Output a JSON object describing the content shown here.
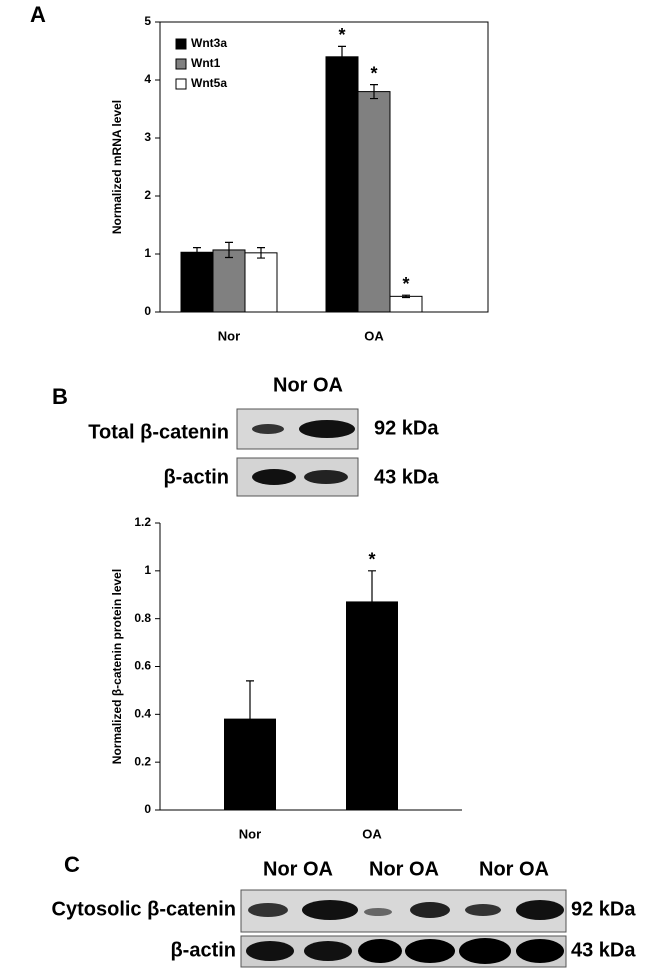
{
  "chart_data": [
    {
      "type": "bar",
      "panel_label": "A",
      "ylabel": "Normalized mRNA level",
      "categories": [
        "Nor",
        "OA"
      ],
      "series": [
        {
          "name": "Wnt3a",
          "color": "#000000",
          "values": [
            1.03,
            4.4
          ],
          "errors": [
            0.08,
            0.18
          ],
          "labels": [
            null,
            "*"
          ]
        },
        {
          "name": "Wnt1",
          "color": "#808080",
          "values": [
            1.07,
            3.8
          ],
          "errors": [
            0.13,
            0.12
          ],
          "labels": [
            null,
            "*"
          ]
        },
        {
          "name": "Wnt5a",
          "color": "#ffffff",
          "values": [
            1.02,
            0.27
          ],
          "errors": [
            0.09,
            0.02
          ],
          "labels": [
            null,
            "*"
          ]
        }
      ],
      "ylim": [
        0,
        5
      ],
      "yticks": [
        0,
        1,
        2,
        3,
        4,
        5
      ],
      "legend": "upper left"
    },
    {
      "type": "bar",
      "ylabel": "Normalized β-catenin protein level",
      "categories": [
        "Nor",
        "OA"
      ],
      "values": [
        0.38,
        0.87
      ],
      "errors": [
        0.16,
        0.13
      ],
      "labels": [
        null,
        "*"
      ],
      "color": "#000000",
      "ylim": [
        0,
        1.2
      ],
      "yticks": [
        0,
        0.2,
        0.4,
        0.6,
        0.8,
        1,
        1.2
      ]
    }
  ],
  "blots": [
    {
      "panel_label": "B",
      "lanes": [
        "Nor OA"
      ],
      "rows": [
        {
          "label": "Total β-catenin",
          "size": "92 kDa"
        },
        {
          "label": "β-actin",
          "size": "43 kDa"
        }
      ]
    },
    {
      "panel_label": "C",
      "lanes": [
        "Nor OA",
        "Nor OA",
        "Nor OA"
      ],
      "rows": [
        {
          "label": "Cytosolic β-catenin",
          "size": "92 kDa"
        },
        {
          "label": "β-actin",
          "size": "43 kDa"
        }
      ]
    }
  ]
}
